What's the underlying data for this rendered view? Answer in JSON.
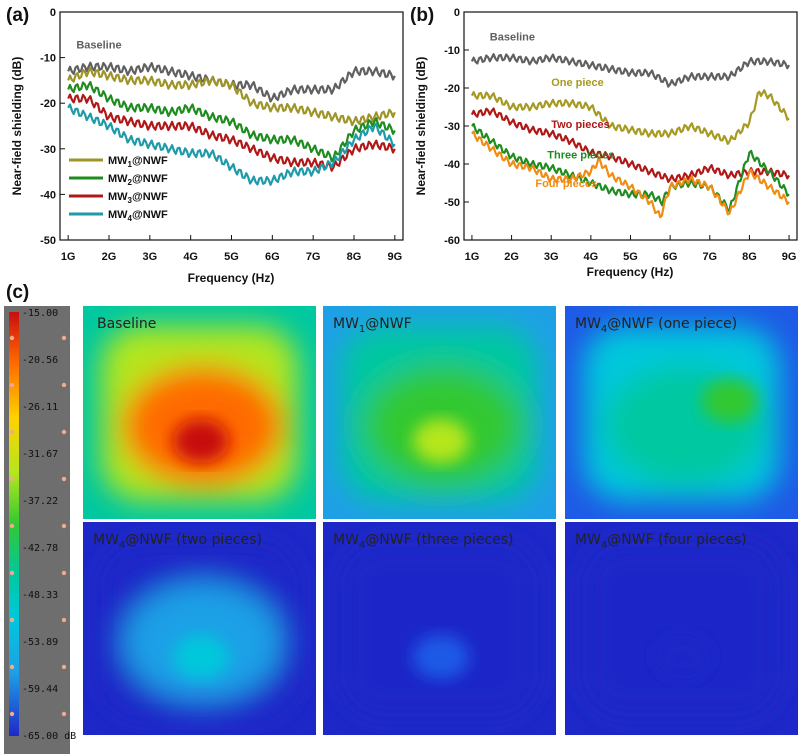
{
  "panel_labels": {
    "a": "(a)",
    "b": "(b)",
    "c": "(c)"
  },
  "colors": {
    "baseline": "#606060",
    "mw1": "#9e9428",
    "mw2": "#1e8c1e",
    "mw3": "#b01818",
    "mw4": "#1e9aa8",
    "one_piece": "#a69a22",
    "two_pieces": "#b01818",
    "three_pieces": "#1e8c1e",
    "four_pieces": "#f08c14"
  },
  "chart_data": [
    {
      "type": "line",
      "panel": "(a)",
      "xlabel": "Frequency (Hz)",
      "ylabel": "Near-field shielding (dB)",
      "xlim": [
        0.8,
        9.2
      ],
      "ylim": [
        -50,
        0
      ],
      "xticks": [
        1,
        2,
        3,
        4,
        5,
        6,
        7,
        8,
        9
      ],
      "xtick_labels": [
        "1G",
        "2G",
        "3G",
        "4G",
        "5G",
        "6G",
        "7G",
        "8G",
        "9G"
      ],
      "yticks": [
        -50,
        -40,
        -30,
        -20,
        -10,
        0
      ],
      "ytick_labels": [
        "-50",
        "-40",
        "-30",
        "-20",
        "-10",
        "0"
      ],
      "grid": false,
      "legend": "bottom-left",
      "series": [
        {
          "name": "Baseline",
          "key": "baseline",
          "x": [
            1,
            1.5,
            2,
            2.5,
            3,
            3.5,
            4,
            4.5,
            5,
            5.5,
            6,
            6.5,
            7,
            7.5,
            8,
            8.5,
            9
          ],
          "y": [
            -13,
            -12,
            -12,
            -13,
            -12,
            -13,
            -14,
            -15,
            -16,
            -16,
            -19,
            -17,
            -17,
            -17,
            -13,
            -13,
            -14
          ]
        },
        {
          "name": "MW1@NWF",
          "key": "mw1",
          "x": [
            1,
            1.5,
            2,
            2.5,
            3,
            3.5,
            4,
            4.5,
            5,
            5.5,
            6,
            6.5,
            7,
            7.5,
            8,
            8.5,
            9
          ],
          "y": [
            -15,
            -13,
            -14,
            -15,
            -15,
            -16,
            -16,
            -15,
            -16,
            -20,
            -21,
            -21,
            -22,
            -23,
            -24,
            -23,
            -22
          ]
        },
        {
          "name": "MW2@NWF",
          "key": "mw2",
          "x": [
            1,
            1.5,
            2,
            2.5,
            3,
            3.5,
            4,
            4.5,
            5,
            5.5,
            6,
            6.5,
            7,
            7.5,
            8,
            8.5,
            9
          ],
          "y": [
            -17,
            -16,
            -19,
            -21,
            -21,
            -22,
            -21,
            -23,
            -24,
            -27,
            -28,
            -28,
            -30,
            -32,
            -26,
            -24,
            -26
          ]
        },
        {
          "name": "MW3@NWF",
          "key": "mw3",
          "x": [
            1,
            1.5,
            2,
            2.5,
            3,
            3.5,
            4,
            4.5,
            5,
            5.5,
            6,
            6.5,
            7,
            7.5,
            8,
            8.5,
            9
          ],
          "y": [
            -19,
            -19,
            -23,
            -24,
            -25,
            -25,
            -25,
            -27,
            -28,
            -30,
            -32,
            -33,
            -33,
            -34,
            -30,
            -29,
            -30
          ]
        },
        {
          "name": "MW4@NWF",
          "key": "mw4",
          "x": [
            1,
            1.5,
            2,
            2.5,
            3,
            3.5,
            4,
            4.5,
            5,
            5.5,
            6,
            6.5,
            7,
            7.5,
            8,
            8.5,
            9
          ],
          "y": [
            -21,
            -23,
            -25,
            -28,
            -29,
            -30,
            -31,
            -31,
            -34,
            -37,
            -37,
            -35,
            -35,
            -33,
            -28,
            -25,
            -29
          ]
        }
      ],
      "legend_entries": [
        {
          "pre": "MW",
          "sub": "1",
          "post": "@NWF",
          "key": "mw1"
        },
        {
          "pre": "MW",
          "sub": "2",
          "post": "@NWF",
          "key": "mw2"
        },
        {
          "pre": "MW",
          "sub": "3",
          "post": "@NWF",
          "key": "mw3"
        },
        {
          "pre": "MW",
          "sub": "4",
          "post": "@NWF",
          "key": "mw4"
        }
      ],
      "annotations": [
        {
          "text": "Baseline",
          "key": "baseline",
          "x": 1.2,
          "y": -8
        }
      ]
    },
    {
      "type": "line",
      "panel": "(b)",
      "xlabel": "Frequency (Hz)",
      "ylabel": "Near-field shielding (dB)",
      "xlim": [
        0.8,
        9.2
      ],
      "ylim": [
        -60,
        0
      ],
      "xticks": [
        1,
        2,
        3,
        4,
        5,
        6,
        7,
        8,
        9
      ],
      "xtick_labels": [
        "1G",
        "2G",
        "3G",
        "4G",
        "5G",
        "6G",
        "7G",
        "8G",
        "9G"
      ],
      "yticks": [
        -60,
        -50,
        -40,
        -30,
        -20,
        -10,
        0
      ],
      "ytick_labels": [
        "-60",
        "-50",
        "-40",
        "-30",
        "-20",
        "-10",
        "0"
      ],
      "grid": false,
      "series": [
        {
          "name": "Baseline",
          "key": "baseline",
          "x": [
            1,
            1.5,
            2,
            2.5,
            3,
            3.5,
            4,
            4.5,
            5,
            5.5,
            6,
            6.5,
            7,
            7.5,
            8,
            8.5,
            9
          ],
          "y": [
            -13,
            -12,
            -12,
            -13,
            -12,
            -13,
            -14,
            -15,
            -16,
            -16,
            -19,
            -17,
            -17,
            -17,
            -13,
            -13,
            -14
          ]
        },
        {
          "name": "One piece",
          "key": "one_piece",
          "x": [
            1,
            1.5,
            2,
            2.5,
            3,
            3.5,
            4,
            4.5,
            5,
            5.5,
            6,
            6.5,
            7,
            7.5,
            8,
            8.25,
            8.5,
            9
          ],
          "y": [
            -22,
            -22,
            -25,
            -25,
            -24,
            -24,
            -25,
            -30,
            -31,
            -32,
            -32,
            -30,
            -32,
            -34,
            -29,
            -21,
            -22,
            -28
          ]
        },
        {
          "name": "Two pieces",
          "key": "two_pieces",
          "x": [
            1,
            1.5,
            2,
            2.5,
            3,
            3.5,
            4,
            4.5,
            5,
            5.5,
            6,
            6.5,
            7,
            7.5,
            8,
            8.5,
            9
          ],
          "y": [
            -27,
            -26,
            -29,
            -31,
            -32,
            -34,
            -37,
            -38,
            -40,
            -42,
            -44,
            -43,
            -41,
            -43,
            -42,
            -42,
            -43
          ]
        },
        {
          "name": "Three pieces",
          "key": "three_pieces",
          "x": [
            1,
            1.5,
            2,
            2.5,
            3,
            3.5,
            4,
            4.5,
            5,
            5.5,
            5.8,
            6,
            6.5,
            7,
            7.5,
            8,
            8.5,
            9
          ],
          "y": [
            -30,
            -34,
            -38,
            -40,
            -41,
            -43,
            -45,
            -47,
            -48,
            -48,
            -50,
            -46,
            -45,
            -46,
            -52,
            -37,
            -42,
            -48
          ]
        },
        {
          "name": "Four pieces",
          "key": "four_pieces",
          "x": [
            1,
            1.5,
            2,
            2.5,
            3,
            3.5,
            4,
            4.2,
            4.5,
            5,
            5.5,
            5.75,
            6,
            6.5,
            7,
            7.5,
            8,
            8.5,
            9
          ],
          "y": [
            -32,
            -36,
            -40,
            -41,
            -44,
            -44,
            -42,
            -39,
            -43,
            -46,
            -50,
            -54,
            -46,
            -44,
            -46,
            -53,
            -42,
            -46,
            -50
          ]
        }
      ],
      "annotations": [
        {
          "text": "Baseline",
          "key": "baseline",
          "x": 1.45,
          "y": -7.5
        },
        {
          "text": "One piece",
          "key": "one_piece",
          "x": 3.0,
          "y": -19.5
        },
        {
          "text": "Two pieces",
          "key": "two_pieces",
          "x": 3.0,
          "y": -30.5
        },
        {
          "text": "Three pieces",
          "key": "three_pieces",
          "x": 2.9,
          "y": -38.5
        },
        {
          "text": "Four pieces",
          "key": "four_pieces",
          "x": 2.6,
          "y": -46.0
        }
      ]
    },
    {
      "type": "heatmap",
      "panel": "(c)",
      "colorbar": {
        "ticks": [
          "-15.00",
          "-20.56",
          "-26.11",
          "-31.67",
          "-37.22",
          "-42.78",
          "-48.33",
          "-53.89",
          "-59.44",
          "-65.00 dB"
        ],
        "range": [
          -65,
          -15
        ],
        "colors": [
          "#c80f0f",
          "#ff6a00",
          "#ffd200",
          "#b4e61e",
          "#32c832",
          "#00c8a0",
          "#00c8dc",
          "#1ea0e6",
          "#1e5ae6",
          "#1e28c8"
        ]
      },
      "maps": [
        {
          "pre": "Baseline",
          "sub": "",
          "post": "",
          "level": 0.95
        },
        {
          "pre": "MW",
          "sub": "1",
          "post": "@NWF",
          "level": 0.7
        },
        {
          "pre": "MW",
          "sub": "4",
          "post": "@NWF (one piece)",
          "level": 0.55
        },
        {
          "pre": "MW",
          "sub": "4",
          "post": "@NWF (two pieces)",
          "level": 0.3
        },
        {
          "pre": "MW",
          "sub": "4",
          "post": "@NWF (three pieces)",
          "level": 0.15
        },
        {
          "pre": "MW",
          "sub": "4",
          "post": "@NWF (four pieces)",
          "level": 0.05
        }
      ]
    }
  ]
}
